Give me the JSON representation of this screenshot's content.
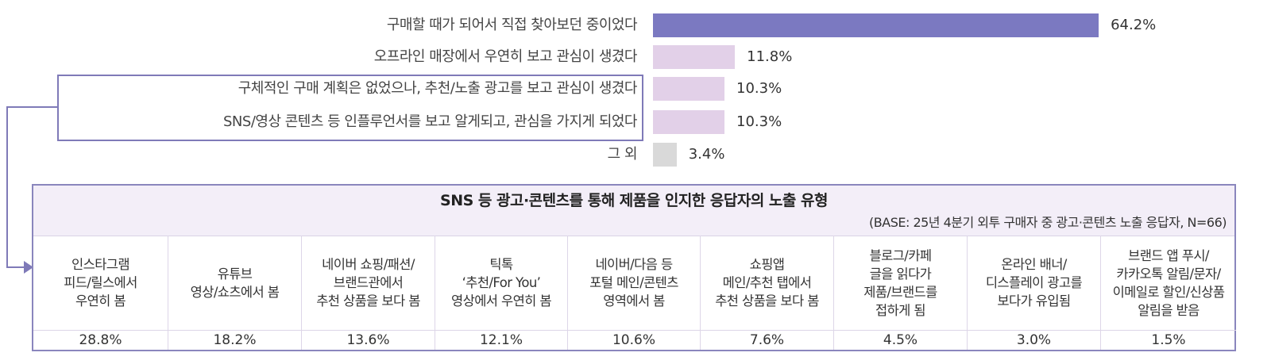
{
  "chart_data": {
    "type": "bar",
    "orientation": "horizontal",
    "categories": [
      "구매할 때가 되어서 직접 찾아보던 중이었다",
      "오프라인 매장에서 우연히 보고 관심이 생겼다",
      "구체적인 구매 계획은 없었으나, 추천/노출 광고를 보고 관심이 생겼다",
      "SNS/영상 콘텐츠 등 인플루언서를 보고 알게되고, 관심을 가지게 되었다",
      "그 외"
    ],
    "values": [
      64.2,
      11.8,
      10.3,
      10.3,
      3.4
    ],
    "value_labels": [
      "64.2%",
      "11.8%",
      "10.3%",
      "10.3%",
      "3.4%"
    ],
    "colors": [
      "#7b79c1",
      "#e2d0e8",
      "#e2d0e8",
      "#e2d0e8",
      "#d9d9d9"
    ],
    "highlighted_categories": [
      2,
      3
    ],
    "grid": false
  },
  "table": {
    "title": "SNS 등 광고·콘텐츠를 통해 제품을 인지한 응답자의 노출 유형",
    "subtitle": "(BASE: 25년 4분기 외투 구매자 중 광고·콘텐츠 노출 응답자, N=66)",
    "columns": [
      {
        "label": "인스타그램\n피드/릴스에서\n우연히 봄",
        "value": "28.8%"
      },
      {
        "label": "유튜브\n영상/쇼츠에서 봄",
        "value": "18.2%"
      },
      {
        "label": "네이버 쇼핑/패션/\n브랜드관에서\n추천 상품을 보다 봄",
        "value": "13.6%"
      },
      {
        "label": "틱톡\n‘추천/For You’\n영상에서 우연히 봄",
        "value": "12.1%"
      },
      {
        "label": "네이버/다음 등\n포털 메인/콘텐츠\n영역에서 봄",
        "value": "10.6%"
      },
      {
        "label": "쇼핑앱\n메인/추천 탭에서\n추천 상품을 보다 봄",
        "value": "7.6%"
      },
      {
        "label": "블로그/카페\n글을 읽다가\n제품/브랜드를\n접하게 됨",
        "value": "4.5%"
      },
      {
        "label": "온라인 배너/\n디스플레이 광고를\n보다가 유입됨",
        "value": "3.0%"
      },
      {
        "label": "브랜드 앱 푸시/\n카카오톡 알림/문자/\n이메일로 할인/신상품\n알림을 받음",
        "value": "1.5%"
      }
    ]
  },
  "accent_color": "#7f7ab8"
}
